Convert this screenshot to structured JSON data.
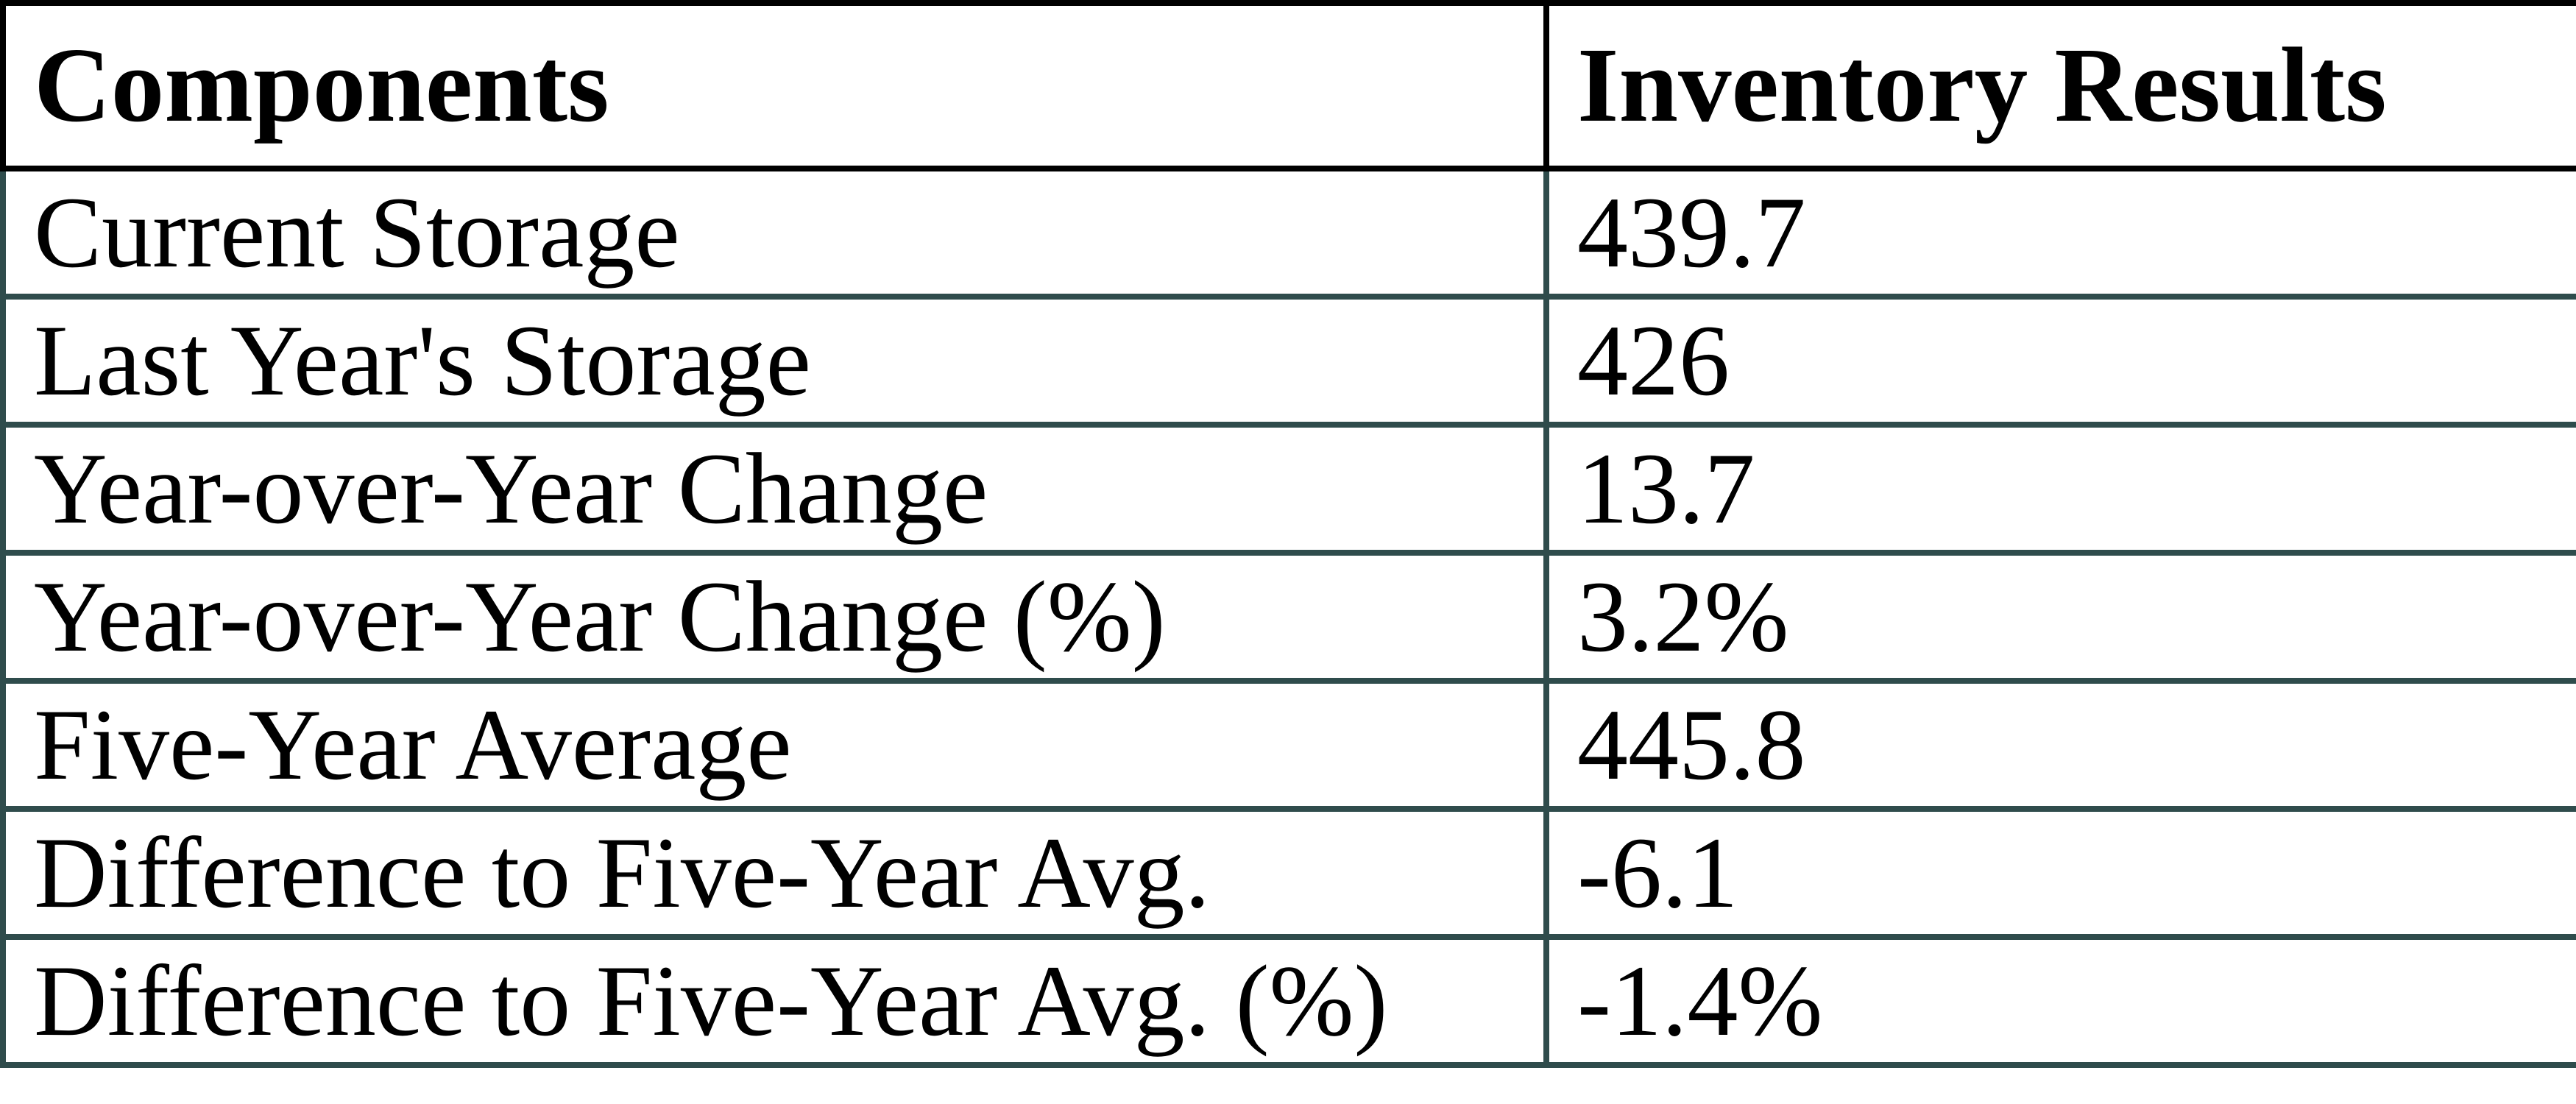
{
  "table": {
    "header": {
      "components_label": "Components",
      "results_label": "Inventory Results"
    },
    "rows": [
      {
        "label": "Current Storage",
        "value": "439.7"
      },
      {
        "label": "Last Year's Storage",
        "value": "426"
      },
      {
        "label": "Year-over-Year Change",
        "value": "13.7"
      },
      {
        "label": "Year-over-Year Change (%)",
        "value": "3.2%"
      },
      {
        "label": "Five-Year Average",
        "value": "445.8"
      },
      {
        "label": "Difference to Five-Year Avg.",
        "value": "-6.1"
      },
      {
        "label": "Difference to Five-Year Avg. (%)",
        "value": "-1.4%"
      }
    ],
    "colors": {
      "header_border": "#000000",
      "body_border": "#2f4c4c",
      "text": "#000000",
      "cell_background": "#ffffff"
    }
  },
  "chart_data": {
    "type": "table",
    "title": "",
    "columns": [
      "Components",
      "Inventory Results"
    ],
    "categories": [
      "Current Storage",
      "Last Year's Storage",
      "Year-over-Year Change",
      "Year-over-Year Change (%)",
      "Five-Year Average",
      "Difference to Five-Year Avg.",
      "Difference to Five-Year Avg. (%)"
    ],
    "values": [
      439.7,
      426,
      13.7,
      "3.2%",
      445.8,
      -6.1,
      "-1.4%"
    ],
    "layout": {
      "header_row_border_color": "#000000",
      "body_row_border_color": "#2f4c4c",
      "grid": "on",
      "column_alignment": [
        "left",
        "left"
      ]
    }
  }
}
